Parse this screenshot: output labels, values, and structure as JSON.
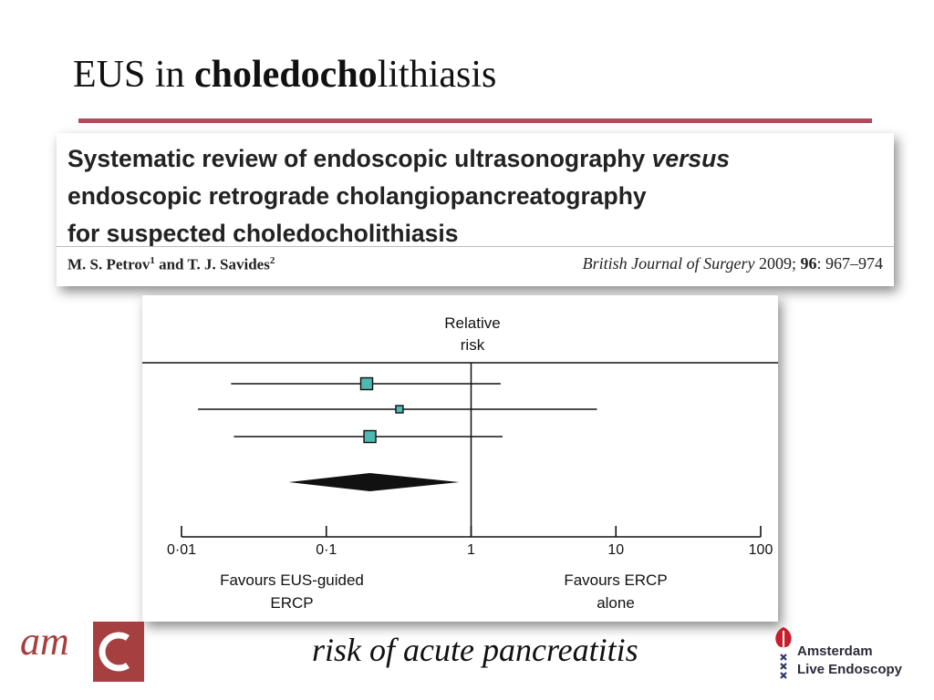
{
  "slide": {
    "title_prefix": "EUS in ",
    "title_bold": "choledocho",
    "title_suffix": "lithiasis",
    "accent_color": "#b04a5c",
    "subtitle": "risk of acute pancreatitis"
  },
  "paper": {
    "title_line1": "Systematic review of endoscopic ultrasonography ",
    "title_line1_italic": "versus",
    "title_line2": "endoscopic retrograde cholangiopancreatography",
    "title_line3": "for suspected choledocholithiasis",
    "author1": "M. S. Petrov",
    "author1_sup": "1",
    "author_join": " and ",
    "author2": "T. J. Savides",
    "author2_sup": "2",
    "journal": "British Journal of Surgery",
    "citation_year": " 2009; ",
    "citation_volume": "96",
    "citation_pages": ": 967–974"
  },
  "chart_data": {
    "type": "forest",
    "header_line1": "Relative",
    "header_line2": "risk",
    "x_scale": "log",
    "xlim": [
      0.01,
      100
    ],
    "x_ticks": [
      0.01,
      0.1,
      1,
      10,
      100
    ],
    "x_tick_labels": [
      "0·01",
      "0·1",
      "1",
      "10",
      "100"
    ],
    "reference_line": 1,
    "left_label_line1": "Favours EUS-guided",
    "left_label_line2": "ERCP",
    "right_label_line1": "Favours ERCP",
    "right_label_line2": "alone",
    "marker_color": "#4fb8b0",
    "studies": [
      {
        "estimate": 0.19,
        "ci_low": 0.022,
        "ci_high": 1.6,
        "weight": "large"
      },
      {
        "estimate": 0.32,
        "ci_low": 0.013,
        "ci_high": 7.4,
        "weight": "small"
      },
      {
        "estimate": 0.2,
        "ci_low": 0.023,
        "ci_high": 1.65,
        "weight": "large"
      }
    ],
    "pooled": {
      "estimate": 0.2,
      "ci_low": 0.055,
      "ci_high": 0.83
    }
  },
  "logos": {
    "amc_text": "am",
    "amc_color": "#a63f3f",
    "ale_line1": "Amsterdam",
    "ale_line2": "Live Endoscopy",
    "ale_color": "#c4202b"
  }
}
